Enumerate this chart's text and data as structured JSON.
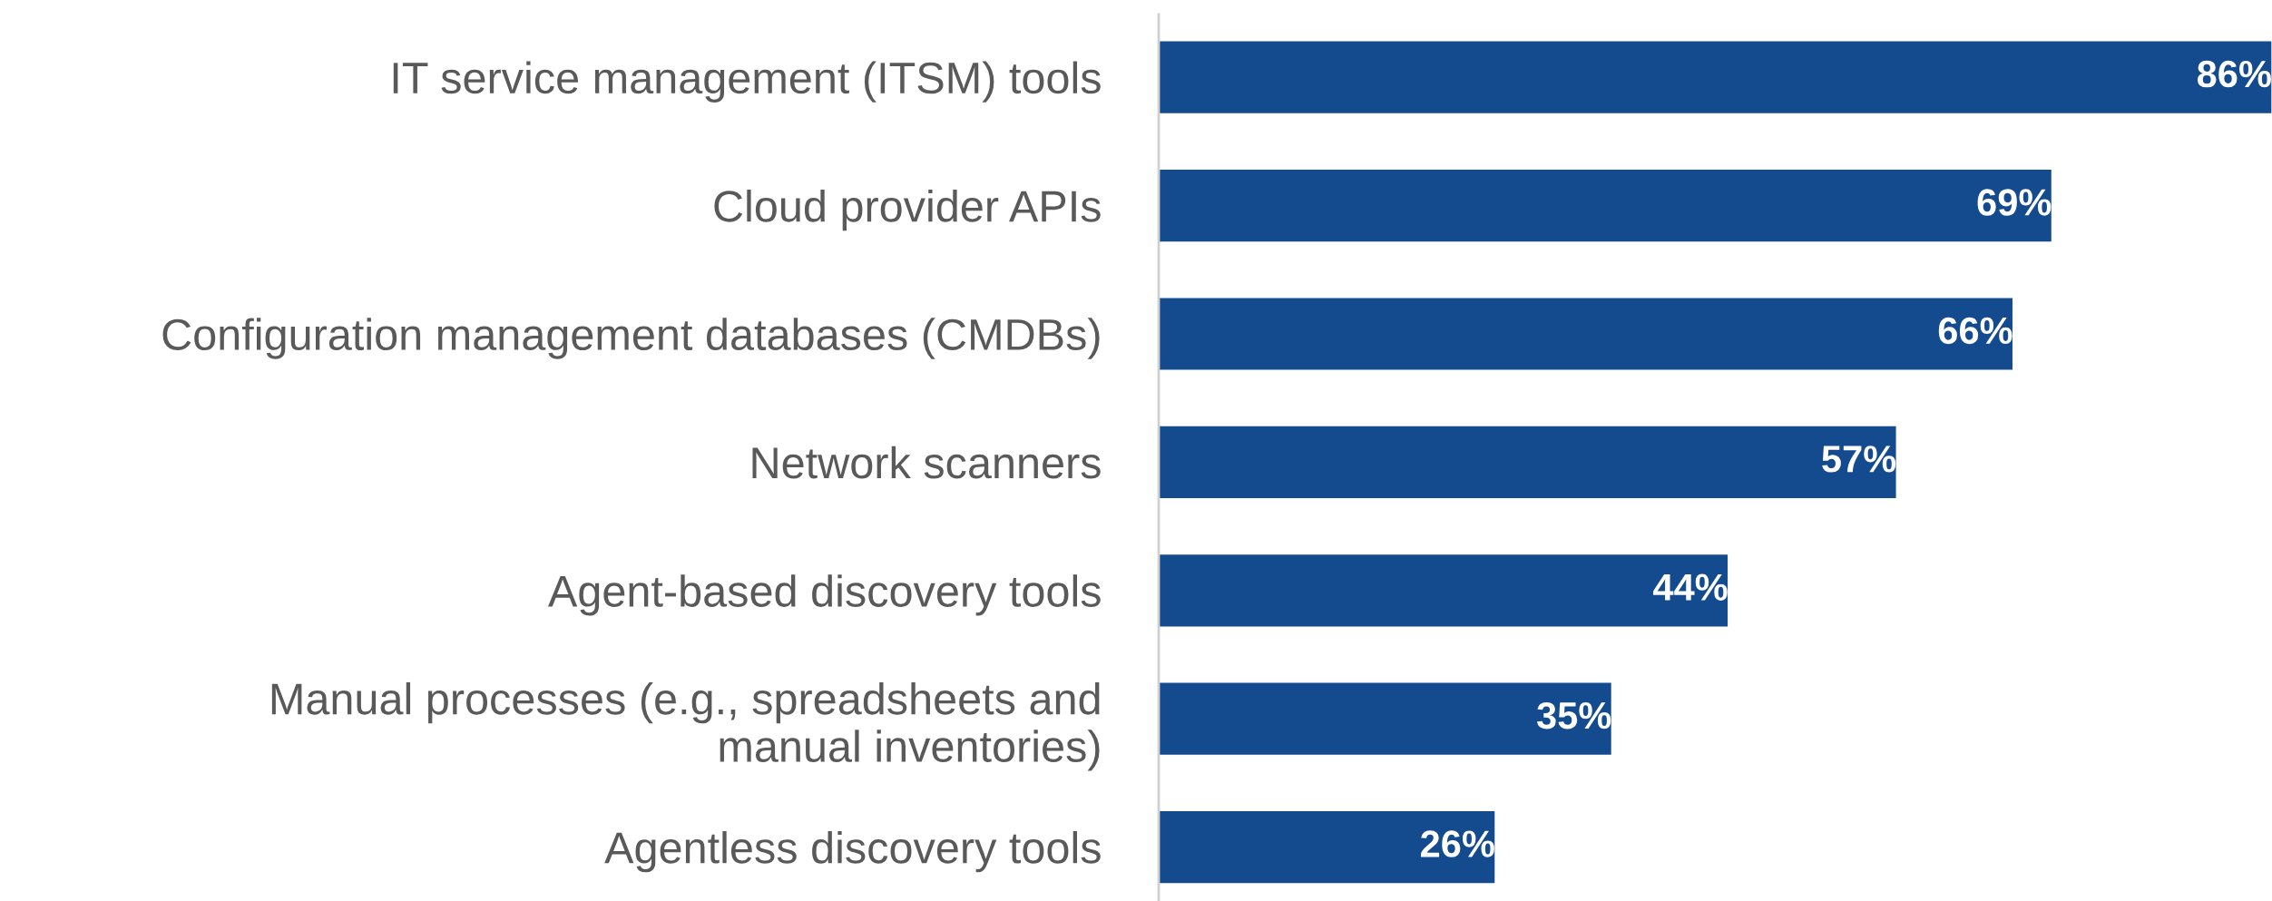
{
  "chart_data": {
    "type": "bar",
    "orientation": "horizontal",
    "categories": [
      "IT service management (ITSM) tools",
      "Cloud provider APIs",
      "Configuration management databases (CMDBs)",
      "Network scanners",
      "Agent-based discovery tools",
      "Manual processes (e.g., spreadsheets and\nmanual inventories)",
      "Agentless discovery tools"
    ],
    "values": [
      86,
      69,
      66,
      57,
      44,
      35,
      26
    ],
    "value_labels": [
      "86%",
      "69%",
      "66%",
      "57%",
      "44%",
      "35%",
      "26%"
    ],
    "color": "#134b8e",
    "grid": false,
    "legend": false
  }
}
